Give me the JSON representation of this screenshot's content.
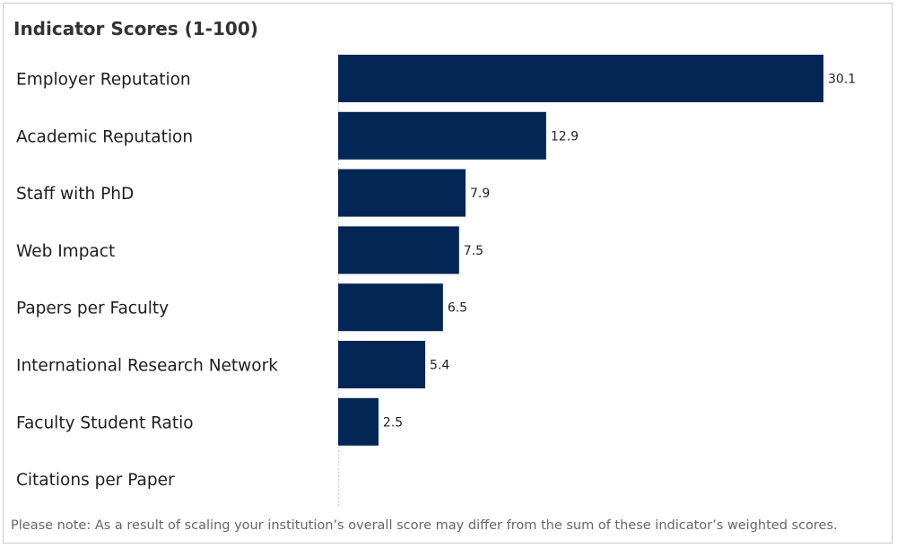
{
  "chart_data": {
    "type": "bar",
    "orientation": "horizontal",
    "title": "Indicator Scores (1-100)",
    "categories": [
      "Employer Reputation",
      "Academic Reputation",
      "Staff with PhD",
      "Web Impact",
      "Papers per Faculty",
      "International Research Network",
      "Faculty Student Ratio",
      "Citations per Paper"
    ],
    "values": [
      30.1,
      12.9,
      7.9,
      7.5,
      6.5,
      5.4,
      2.5,
      null
    ],
    "value_labels": [
      "30.1",
      "12.9",
      "7.9",
      "7.5",
      "6.5",
      "5.4",
      "2.5",
      ""
    ],
    "xlabel": "",
    "ylabel": "",
    "grid": false,
    "bar_color": "#032654",
    "note": "Please note: As a result of scaling your institution’s overall score may differ from the sum of these indicator’s weighted scores."
  }
}
